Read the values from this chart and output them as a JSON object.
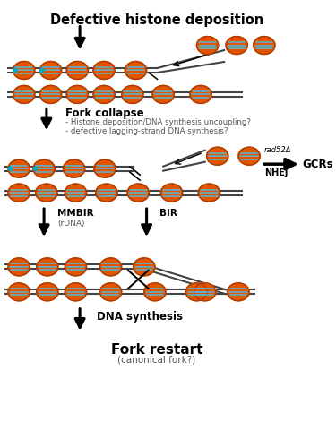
{
  "bg_color": "#ffffff",
  "nuc_orange": "#e05500",
  "nuc_dark": "#b03c00",
  "nuc_stripe": "#55b8d8",
  "nuc_teal": "#00aacc",
  "dna_color": "#444444",
  "arrow_color": "#111111",
  "text_dark": "#222222",
  "text_gray": "#555555",
  "title": "Defective histone deposition",
  "label_fork_collapse": "Fork collapse",
  "label_fc1": "- Histone deposition/DNA synthesis uncoupling?",
  "label_fc2": "- defective lagging-strand DNA synthesis?",
  "label_mmbir": "MMBIR",
  "label_mmbir_sub": "(rDNA)",
  "label_bir": "BIR",
  "label_gcrs": "GCRs",
  "label_nhej": "NHEJ",
  "label_rad52": "rad52Δ",
  "label_dna_syn": "DNA synthesis",
  "label_restart": "Fork restart",
  "label_restart_sub": "(canonical fork?)"
}
